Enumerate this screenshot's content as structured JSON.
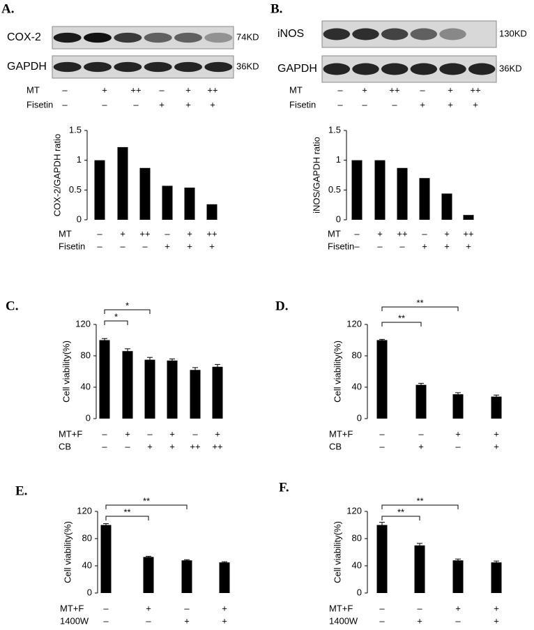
{
  "chart_data": [
    {
      "type": "bar",
      "panel": "A.",
      "color": "#000000",
      "blots": [
        {
          "name": "COX-2",
          "size": "74KD"
        },
        {
          "name": "GAPDH",
          "size": "36KD"
        }
      ],
      "rows": [
        {
          "name": "MT",
          "marks": [
            "–",
            "+",
            "++",
            "–",
            "+",
            "++"
          ]
        },
        {
          "name": "Fisetin",
          "marks": [
            "–",
            "–",
            "–",
            "+",
            "+",
            "+"
          ]
        }
      ],
      "ylabel": "COX-2/GAPDH ratio",
      "ylim": [
        0,
        1.5
      ],
      "yticks": [
        0,
        0.5,
        1,
        1.5
      ],
      "values": [
        1.0,
        1.22,
        0.87,
        0.57,
        0.54,
        0.26
      ]
    },
    {
      "type": "bar",
      "panel": "B.",
      "color": "#000000",
      "blots": [
        {
          "name": "iNOS",
          "size": "130KD"
        },
        {
          "name": "GAPDH",
          "size": "36KD"
        }
      ],
      "rows": [
        {
          "name": "MT",
          "marks": [
            "–",
            "+",
            "++",
            "–",
            "+",
            "++"
          ]
        },
        {
          "name": "Fisetin",
          "marks": [
            "–",
            "–",
            "–",
            "+",
            "+",
            "+"
          ]
        }
      ],
      "ylabel": "iNOS/GAPDH ratio",
      "ylim": [
        0,
        1.5
      ],
      "yticks": [
        0,
        0.5,
        1,
        1.5
      ],
      "values": [
        1.0,
        1.0,
        0.87,
        0.7,
        0.44,
        0.08
      ]
    },
    {
      "type": "bar",
      "panel": "C.",
      "color": "#000000",
      "rows": [
        {
          "name": "MT+F",
          "marks": [
            "–",
            "+",
            "–",
            "+",
            "–",
            "+"
          ]
        },
        {
          "name": "CB",
          "marks": [
            "–",
            "–",
            "+",
            "+",
            "++",
            "++"
          ]
        }
      ],
      "ylabel": "Cell viability(%)",
      "ylim": [
        0,
        120
      ],
      "yticks": [
        0,
        40,
        80,
        120
      ],
      "values": [
        100,
        86,
        75,
        74,
        62,
        66
      ],
      "errors": [
        2,
        3,
        3,
        2,
        3,
        3
      ],
      "brackets": [
        "*",
        "*"
      ]
    },
    {
      "type": "bar",
      "panel": "D.",
      "color": "#000000",
      "rows": [
        {
          "name": "MT+F",
          "marks": [
            "–",
            "–",
            "+",
            "+"
          ]
        },
        {
          "name": "CB",
          "marks": [
            "–",
            "+",
            "–",
            "+"
          ]
        }
      ],
      "ylabel": "Cell viability(%)",
      "ylim": [
        0,
        120
      ],
      "yticks": [
        0,
        40,
        80,
        120
      ],
      "values": [
        100,
        43,
        31,
        28
      ],
      "errors": [
        1,
        2,
        2,
        2
      ],
      "brackets": [
        "**",
        "**"
      ]
    },
    {
      "type": "bar",
      "panel": "E.",
      "color": "#000000",
      "rows": [
        {
          "name": "MT+F",
          "marks": [
            "–",
            "+",
            "–",
            "+"
          ]
        },
        {
          "name": "1400W",
          "marks": [
            "–",
            "–",
            "+",
            "+"
          ]
        }
      ],
      "ylabel": "Cell viability(%)",
      "ylim": [
        0,
        120
      ],
      "yticks": [
        0,
        40,
        80,
        120
      ],
      "values": [
        100,
        53,
        48,
        45
      ],
      "errors": [
        2,
        1,
        1,
        1
      ],
      "brackets": [
        "**",
        "**"
      ]
    },
    {
      "type": "bar",
      "panel": "F.",
      "color": "#000000",
      "rows": [
        {
          "name": "MT+F",
          "marks": [
            "–",
            "–",
            "+",
            "+"
          ]
        },
        {
          "name": "1400W",
          "marks": [
            "–",
            "+",
            "–",
            "+"
          ]
        }
      ],
      "ylabel": "Cell viability(%)",
      "ylim": [
        0,
        120
      ],
      "yticks": [
        0,
        40,
        80,
        120
      ],
      "values": [
        100,
        70,
        48,
        45
      ],
      "errors": [
        4,
        3,
        2,
        2
      ],
      "brackets": [
        "**",
        "**"
      ]
    }
  ]
}
